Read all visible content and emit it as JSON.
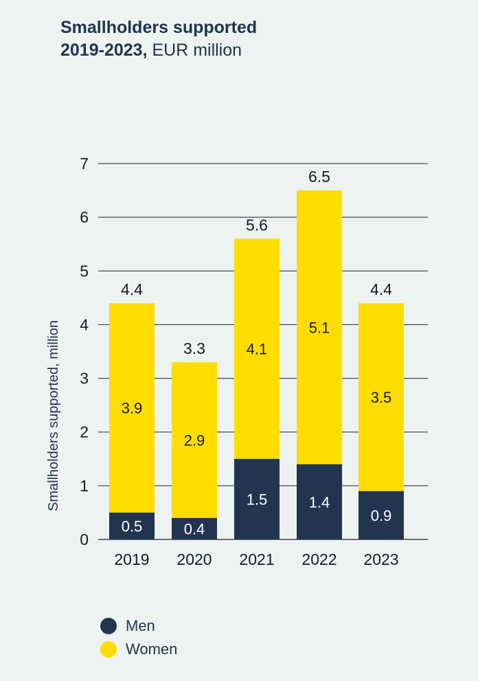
{
  "title": {
    "line1": "Smallholders supported",
    "line2_bold": "2019-2023,",
    "line2_unit": "EUR million"
  },
  "colors": {
    "men": "#22344f",
    "women": "#ffdd00",
    "text": "#21354f",
    "background": "#edf3f0"
  },
  "legend": [
    {
      "label": "Men",
      "color": "#22344f"
    },
    {
      "label": "Women",
      "color": "#ffdd00"
    }
  ],
  "chart_data": {
    "type": "bar",
    "stacked": true,
    "categories": [
      "2019",
      "2020",
      "2021",
      "2022",
      "2023"
    ],
    "series": [
      {
        "name": "Men",
        "values": [
          0.5,
          0.4,
          1.5,
          1.4,
          0.9
        ]
      },
      {
        "name": "Women",
        "values": [
          3.9,
          2.9,
          4.1,
          5.1,
          3.5
        ]
      }
    ],
    "totals": [
      "4.4",
      "3.3",
      "5.6",
      "6.5",
      "4.4"
    ],
    "men_labels": [
      "0.5",
      "0.4",
      "1.5",
      "1.4",
      "0.9"
    ],
    "women_labels": [
      "3.9",
      "2.9",
      "4.1",
      "5.1",
      "3.5"
    ],
    "ylabel": "Smallholders supported, million",
    "ylim": [
      0,
      7
    ],
    "yticks": [
      0,
      1,
      2,
      3,
      4,
      5,
      6,
      7
    ],
    "grid": true,
    "legend_position": "bottom-left"
  }
}
